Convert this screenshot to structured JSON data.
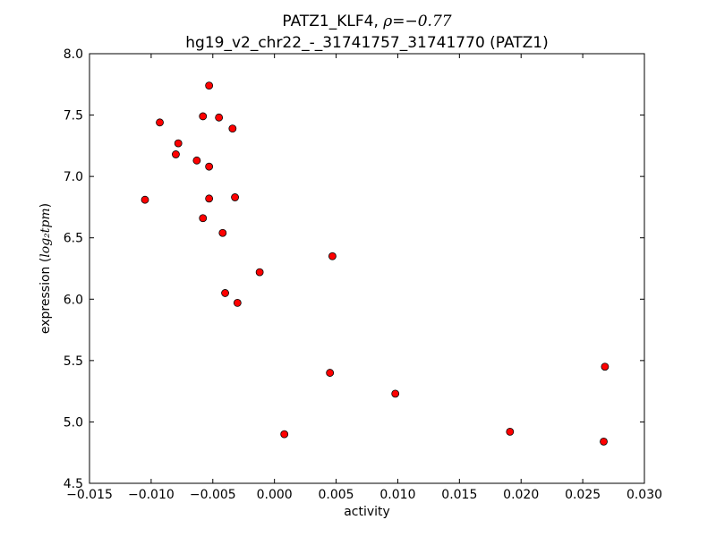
{
  "chart_data": {
    "type": "scatter",
    "title_line1_prefix": "PATZ1_KLF4, ",
    "title_line1_math": "ρ=−0.77",
    "title_line2": "hg19_v2_chr22_-_31741757_31741770 (PATZ1)",
    "xlabel": "activity",
    "ylabel_prefix": "expression (",
    "ylabel_math": "log₂tpm",
    "ylabel_suffix": ")",
    "xlim": [
      -0.015,
      0.03
    ],
    "ylim": [
      4.5,
      8.0
    ],
    "x_ticks": [
      -0.015,
      -0.01,
      -0.005,
      0.0,
      0.005,
      0.01,
      0.015,
      0.02,
      0.025,
      0.03
    ],
    "x_tick_labels": [
      "−0.015",
      "−0.010",
      "−0.005",
      "0.000",
      "0.005",
      "0.010",
      "0.015",
      "0.020",
      "0.025",
      "0.030"
    ],
    "y_ticks": [
      4.5,
      5.0,
      5.5,
      6.0,
      6.5,
      7.0,
      7.5,
      8.0
    ],
    "y_tick_labels": [
      "4.5",
      "5.0",
      "5.5",
      "6.0",
      "6.5",
      "7.0",
      "7.5",
      "8.0"
    ],
    "grid": false,
    "marker_color": "#ff0000",
    "marker_edge_color": "#000000",
    "points": [
      {
        "x": -0.0105,
        "y": 6.81
      },
      {
        "x": -0.0093,
        "y": 7.44
      },
      {
        "x": -0.008,
        "y": 7.18
      },
      {
        "x": -0.0078,
        "y": 7.27
      },
      {
        "x": -0.0063,
        "y": 7.13
      },
      {
        "x": -0.0058,
        "y": 7.49
      },
      {
        "x": -0.0058,
        "y": 6.66
      },
      {
        "x": -0.0053,
        "y": 7.74
      },
      {
        "x": -0.0053,
        "y": 7.08
      },
      {
        "x": -0.0053,
        "y": 6.82
      },
      {
        "x": -0.0045,
        "y": 7.48
      },
      {
        "x": -0.0042,
        "y": 6.54
      },
      {
        "x": -0.004,
        "y": 6.05
      },
      {
        "x": -0.0034,
        "y": 7.39
      },
      {
        "x": -0.0032,
        "y": 6.83
      },
      {
        "x": -0.003,
        "y": 5.97
      },
      {
        "x": -0.0012,
        "y": 6.22
      },
      {
        "x": 0.0008,
        "y": 4.9
      },
      {
        "x": 0.0045,
        "y": 5.4
      },
      {
        "x": 0.0047,
        "y": 6.35
      },
      {
        "x": 0.0098,
        "y": 5.23
      },
      {
        "x": 0.0191,
        "y": 4.92
      },
      {
        "x": 0.0267,
        "y": 4.84
      },
      {
        "x": 0.0268,
        "y": 5.45
      }
    ]
  }
}
